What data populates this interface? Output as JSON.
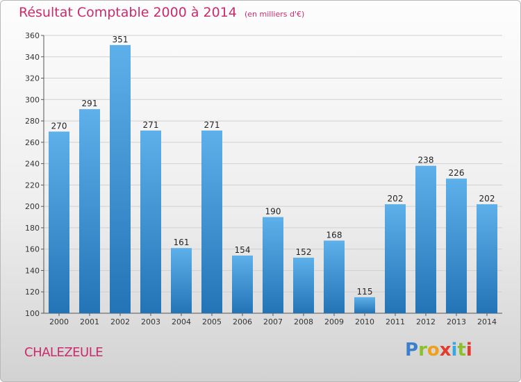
{
  "title": "Résultat Comptable 2000 à 2014",
  "subtitle": "(en milliers d'€)",
  "commune": "CHALEZEULE",
  "logo": {
    "letters": [
      "P",
      "r",
      "o",
      "x",
      "i",
      "t",
      "i"
    ],
    "colors": [
      "#3d7fcf",
      "#8cbf2e",
      "#f0a11c",
      "#e23a2c",
      "#3aa6df",
      "#8cbf2e",
      "#e23a2c"
    ]
  },
  "colors": {
    "bar_top": "#5eb0ea",
    "bar_bottom": "#2274b6",
    "title": "#cc2a6c"
  },
  "chart_data": {
    "type": "bar",
    "categories": [
      "2000",
      "2001",
      "2002",
      "2003",
      "2004",
      "2005",
      "2006",
      "2007",
      "2008",
      "2009",
      "2010",
      "2011",
      "2012",
      "2013",
      "2014"
    ],
    "values": [
      270,
      291,
      351,
      271,
      161,
      271,
      154,
      190,
      152,
      168,
      115,
      202,
      238,
      226,
      202
    ],
    "ylim": [
      100,
      360
    ],
    "yticks": [
      100,
      120,
      140,
      160,
      180,
      200,
      220,
      240,
      260,
      280,
      300,
      320,
      340,
      360
    ],
    "grid": true,
    "title": "Résultat Comptable 2000 à 2014",
    "xlabel": "",
    "ylabel": ""
  }
}
